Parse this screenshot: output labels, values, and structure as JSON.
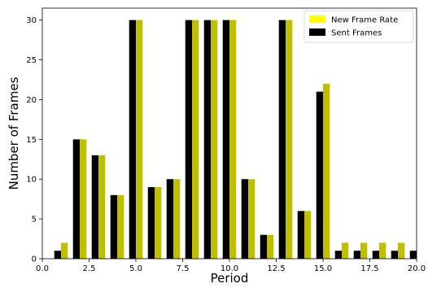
{
  "chart_data": {
    "type": "bar",
    "xlabel": "Period",
    "ylabel": "Number of Frames",
    "xlim": [
      0,
      20
    ],
    "ylim": [
      0,
      31.5
    ],
    "x_ticks": [
      "0.0",
      "2.5",
      "5.0",
      "7.5",
      "10.0",
      "12.5",
      "15.0",
      "17.5",
      "20.0"
    ],
    "y_ticks": [
      "0",
      "5",
      "10",
      "15",
      "20",
      "25",
      "30"
    ],
    "legend_position": "top-right",
    "grid": false,
    "x": [
      1,
      2,
      3,
      4,
      5,
      6,
      7,
      8,
      9,
      10,
      11,
      12,
      13,
      14,
      15,
      16,
      17,
      18,
      19,
      20
    ],
    "series": [
      {
        "name": "Sent Frames",
        "color": "#000000",
        "values": [
          1,
          15,
          13,
          8,
          30,
          9,
          10,
          30,
          30,
          30,
          10,
          3,
          30,
          6,
          21,
          1,
          1,
          1,
          1,
          1
        ]
      },
      {
        "name": "New Frame Rate",
        "color": "#bfbf00",
        "values": [
          2,
          15,
          13,
          8,
          30,
          9,
          10,
          30,
          30,
          30,
          10,
          3,
          30,
          6,
          22,
          2,
          2,
          2,
          2,
          0
        ]
      }
    ],
    "legend": [
      {
        "name": "New Frame Rate",
        "color": "#ffff00"
      },
      {
        "name": "Sent Frames",
        "color": "#000000"
      }
    ]
  }
}
